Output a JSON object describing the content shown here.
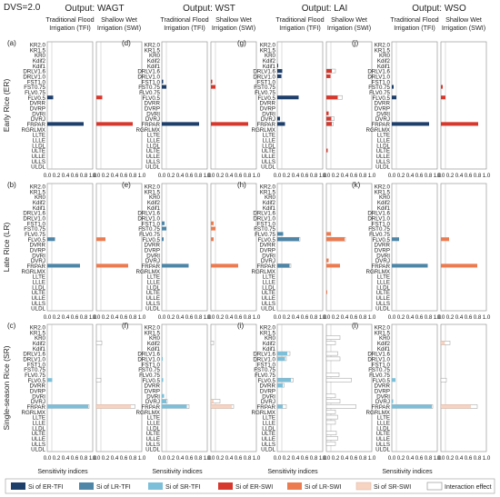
{
  "header": {
    "dvs_label": "DVS=2.0"
  },
  "params": [
    "KR2.0",
    "KR1.5",
    "KR0",
    "Kdif2",
    "Kdif1",
    "DRLV1.6",
    "DRLV1.0",
    "FST1.0",
    "FST0.75",
    "FLV0.75",
    "FLV0.5",
    "DVRR",
    "DVRP",
    "DVRI",
    "DVRJ",
    "FRPAR",
    "RGRLMX",
    "LLTE",
    "LLLE",
    "LLDL",
    "ULTE",
    "ULLE",
    "ULLS",
    "ULDL"
  ],
  "columns": [
    {
      "output": "Output: WAGT",
      "sub_tfi": "Traditional Flood\nIrrigation (TFI)",
      "sub_swi": "Shallow Wet\nIrrigation (SWI)"
    },
    {
      "output": "Output: WST",
      "sub_tfi": "Traditional Flood\nIrrigation (TFI)",
      "sub_swi": "Shallow Wet\nIrrigation (SWI)"
    },
    {
      "output": "Output: LAI",
      "sub_tfi": "Traditional Flood\nIrrigation (TFI)",
      "sub_swi": "Shallow Wet\nIrrigation (SWI)"
    },
    {
      "output": "Output: WSO",
      "sub_tfi": "Traditional Flood\nIrrigation (TFI)",
      "sub_swi": "Shallow Wet\nIrrigation (SWI)"
    }
  ],
  "rows": [
    {
      "label": "Early Rice (ER)",
      "panel_letters": [
        "(a)",
        "(d)",
        "(g)",
        "(j)"
      ]
    },
    {
      "label": "Late Rice (LR)",
      "panel_letters": [
        "(b)",
        "(e)",
        "(h)",
        "(k)"
      ]
    },
    {
      "label": "Single-season Rice (SR)",
      "panel_letters": [
        "(c)",
        "(f)",
        "(i)",
        "(l)"
      ]
    }
  ],
  "axis": {
    "ticks": [
      "0.0",
      "0.2",
      "0.4",
      "0.6",
      "0.8",
      "1.0"
    ],
    "xlabel": "Sensitivity indices"
  },
  "legend": [
    {
      "label": "Si of ER-TFI",
      "color": "#1f3f6b",
      "sub": "i",
      "rest": " of ER-TFI"
    },
    {
      "label": "Si of LR-TFI",
      "color": "#4e86a8",
      "sub": "i",
      "rest": " of LR-TFI"
    },
    {
      "label": "Si of SR-TFI",
      "color": "#7cbfd9",
      "sub": "i",
      "rest": " of SR-TFI"
    },
    {
      "label": "Si of ER-SWI",
      "color": "#d7382e",
      "sub": "i",
      "rest": " of ER-SWI"
    },
    {
      "label": "Si of LR-SWI",
      "color": "#ec7b50",
      "sub": "i",
      "rest": " of LR-SWI"
    },
    {
      "label": "Si of SR-SWI",
      "color": "#f7d3c2",
      "sub": "i",
      "rest": " of SR-SWI"
    },
    {
      "label": "Interaction effect",
      "color": "#ffffff"
    }
  ],
  "chart_data": {
    "type": "bar",
    "orientation": "horizontal",
    "xlim": [
      0,
      1
    ],
    "note_values_are_estimates": true,
    "panels": [
      {
        "row": 0,
        "col": 0,
        "tfi": {
          "FLV0.5": 0.13,
          "FRPAR": 0.8
        },
        "swi": {
          "FLV0.5": 0.13,
          "FRPAR": 0.8
        },
        "interaction_tfi": {},
        "interaction_swi": {}
      },
      {
        "row": 0,
        "col": 1,
        "tfi": {
          "FST1.0": 0.03,
          "FST0.75": 0.1,
          "FRPAR": 0.82
        },
        "swi": {
          "FST1.0": 0.03,
          "FST0.75": 0.1,
          "FRPAR": 0.82
        },
        "interaction_tfi": {},
        "interaction_swi": {}
      },
      {
        "row": 0,
        "col": 2,
        "tfi": {
          "Kdif1": 0.02,
          "DRLV1.6": 0.11,
          "DRLV1.0": 0.09,
          "FLV0.5": 0.47,
          "DVRJ": 0.06,
          "FRPAR": 0.17
        },
        "swi": {
          "DRLV1.6": 0.12,
          "DRLV1.0": 0.09,
          "FLV0.5": 0.25,
          "DVRI": 0.05,
          "DVRJ": 0.11,
          "FRPAR": 0.12,
          "ULTE": 0.03
        },
        "interaction_tfi": {},
        "interaction_swi": {
          "DRLV1.6": 0.2,
          "FLV0.5": 0.35,
          "DVRJ": 0.17,
          "FRPAR": 0.15
        }
      },
      {
        "row": 0,
        "col": 3,
        "tfi": {
          "FST0.75": 0.04,
          "FLV0.5": 0.1,
          "FRPAR": 0.82
        },
        "swi": {
          "FST0.75": 0.04,
          "FLV0.5": 0.1,
          "FRPAR": 0.82
        },
        "interaction_tfi": {},
        "interaction_swi": {}
      },
      {
        "row": 1,
        "col": 0,
        "tfi": {
          "FLV0.5": 0.17,
          "FRPAR": 0.72
        },
        "swi": {
          "FLV0.5": 0.2,
          "FRPAR": 0.7
        },
        "interaction_tfi": {},
        "interaction_swi": {}
      },
      {
        "row": 1,
        "col": 1,
        "tfi": {
          "FST1.0": 0.06,
          "FST0.75": 0.1,
          "FLV0.5": 0.04,
          "FRPAR": 0.59
        },
        "swi": {
          "FST1.0": 0.06,
          "FST0.75": 0.1,
          "FLV0.5": 0.06,
          "FRPAR": 0.6
        },
        "interaction_tfi": {},
        "interaction_swi": {}
      },
      {
        "row": 1,
        "col": 2,
        "tfi": {
          "FLV0.75": 0.13,
          "FLV0.5": 0.48,
          "FRPAR": 0.27
        },
        "swi": {
          "FLV0.75": 0.1,
          "FLV0.5": 0.4,
          "DVRJ": 0.05,
          "FRPAR": 0.3,
          "ULTE": 0.02
        },
        "interaction_tfi": {
          "FLV0.5": 0.5,
          "FRPAR": 0.3
        },
        "interaction_swi": {
          "FLV0.5": 0.42
        }
      },
      {
        "row": 1,
        "col": 3,
        "tfi": {
          "FLV0.5": 0.16,
          "FRPAR": 0.79
        },
        "swi": {
          "FLV0.5": 0.18,
          "FRPAR": 0.8
        },
        "interaction_tfi": {},
        "interaction_swi": {}
      },
      {
        "row": 2,
        "col": 0,
        "tfi": {
          "FLV0.5": 0.11,
          "FRPAR": 0.9
        },
        "swi": {
          "FRPAR": 0.75
        },
        "interaction_tfi": {
          "FRPAR": 0.92
        },
        "interaction_swi": {
          "Kdif2": 0.12,
          "FLV0.5": 0.1,
          "FRPAR": 0.85
        }
      },
      {
        "row": 2,
        "col": 1,
        "tfi": {
          "DRLV1.0": 0.02,
          "FLV0.5": 0.03,
          "DVRI": 0.05,
          "DVRJ": 0.1,
          "FRPAR": 0.55
        },
        "swi": {
          "DVRJ": 0.05,
          "FRPAR": 0.45
        },
        "interaction_tfi": {
          "DVRJ": 0.12,
          "FRPAR": 0.6
        },
        "interaction_swi": {
          "Kdif2": 0.06,
          "DVRJ": 0.2,
          "FRPAR": 0.5
        }
      },
      {
        "row": 2,
        "col": 2,
        "tfi": {
          "DRLV1.6": 0.22,
          "DRLV1.0": 0.17,
          "FLV0.5": 0.3,
          "DVRR": 0.12,
          "FRPAR": 0.12
        },
        "swi": {},
        "interaction_tfi": {
          "DRLV1.6": 0.28,
          "DRLV1.0": 0.2,
          "FLV0.5": 0.35,
          "DVRR": 0.15,
          "FRPAR": 0.2
        },
        "interaction_swi": {
          "KR0": 0.3,
          "Kdif2": 0.2,
          "DRLV1.6": 0.25,
          "DRLV1.0": 0.3,
          "FLV0.75": 0.28,
          "FLV0.5": 0.55,
          "DVRI": 0.2,
          "DVRJ": 0.3,
          "FRPAR": 0.65,
          "RGRLMX": 0.2,
          "LLTE": 0.25,
          "LLLE": 0.2,
          "ULTE": 0.22,
          "ULLE": 0.25,
          "ULLS": 0.2
        }
      },
      {
        "row": 2,
        "col": 3,
        "tfi": {
          "FLV0.5": 0.08,
          "DVRJ": 0.03,
          "FRPAR": 0.88
        },
        "swi": {
          "Kdif2": 0.08,
          "FRPAR": 0.65
        },
        "interaction_tfi": {
          "FRPAR": 0.9
        },
        "interaction_swi": {
          "Kdif2": 0.2,
          "FLV0.5": 0.12,
          "FRPAR": 0.8
        }
      }
    ]
  }
}
